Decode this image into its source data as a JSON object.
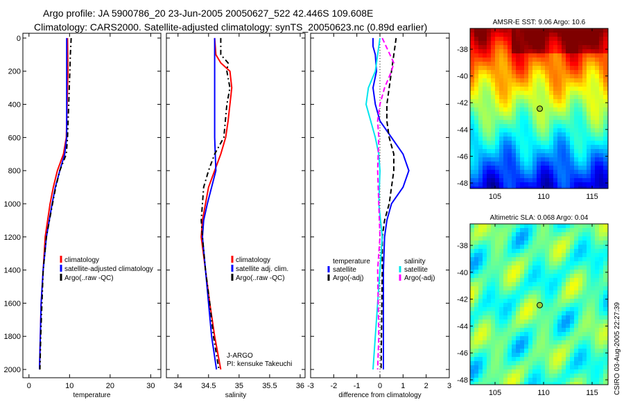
{
  "title_line1": "Argo profile: JA 5900786_20 23-Jun-2005 20050627_522 42.446S 109.608E",
  "title_line2": "Climatology: CARS2000. Satellite-adjusted climatology: synTS_20050623.nc (0.89d earlier)",
  "side_label": "CSIRO 03-Aug-2005 22:27:39",
  "chart_data": [
    {
      "type": "line",
      "xlabel": "temperature",
      "xlim": [
        -1.5,
        32.5
      ],
      "ylim": [
        2050,
        -29
      ],
      "xticks": [
        0,
        10,
        20,
        30
      ],
      "yticks": [
        0,
        200,
        400,
        600,
        800,
        1000,
        1200,
        1400,
        1600,
        1800,
        2000
      ],
      "legend": [
        "climatology",
        "satellite-adjusted climatology",
        "Argo(..raw -QC)"
      ],
      "series": [
        {
          "name": "climatology",
          "color": "#ff0000",
          "dash": "",
          "depth": [
            0,
            200,
            400,
            600,
            700,
            800,
            900,
            1000,
            1100,
            1200,
            1400,
            1600,
            1800,
            2000
          ],
          "values": [
            9.5,
            9.6,
            9.4,
            9.2,
            8.5,
            7,
            6,
            5.2,
            4.6,
            4,
            3.5,
            3,
            2.8,
            2.6
          ]
        },
        {
          "name": "satellite-adjusted climatology",
          "color": "#0000ff",
          "dash": "",
          "depth": [
            0,
            200,
            400,
            600,
            700,
            800,
            900,
            1000,
            1100,
            1200,
            1400,
            1600,
            1800,
            2000
          ],
          "values": [
            9.3,
            9.3,
            9.3,
            9.3,
            8.8,
            7.6,
            6.5,
            5.7,
            5,
            4.3,
            3.5,
            3,
            2.8,
            2.6
          ]
        },
        {
          "name": "Argo(..raw -QC)",
          "color": "#000000",
          "dash": "7,4,2,4",
          "depth": [
            0,
            100,
            400,
            600,
            700,
            800,
            900,
            1000,
            1200,
            1400,
            1800,
            2000
          ],
          "values": [
            10.4,
            10.2,
            9.8,
            9.5,
            9.2,
            7.6,
            6.6,
            5.8,
            4.3,
            3.5,
            2.9,
            2.7
          ]
        }
      ]
    },
    {
      "type": "line",
      "xlabel": "salinity",
      "xlim": [
        33.81,
        36.08
      ],
      "ylim": [
        2050,
        -29
      ],
      "xticks": [
        34,
        34.5,
        35,
        35.5,
        36
      ],
      "legend": [
        "climatology",
        "satellite adj. clim.",
        "Argo(..raw -QC)"
      ],
      "annotation": [
        "J-ARGO",
        "PI: kensuke Takeuchi"
      ],
      "series": [
        {
          "name": "climatology",
          "color": "#ff0000",
          "dash": "",
          "depth": [
            0,
            100,
            150,
            200,
            300,
            400,
            500,
            600,
            700,
            800,
            900,
            1000,
            1100,
            1200,
            1400,
            1600,
            1800,
            2000
          ],
          "values": [
            34.6,
            34.62,
            34.7,
            34.85,
            34.88,
            34.85,
            34.82,
            34.78,
            34.7,
            34.6,
            34.5,
            34.45,
            34.4,
            34.38,
            34.45,
            34.52,
            34.6,
            34.7
          ]
        },
        {
          "name": "satellite adj. clim.",
          "color": "#0000ff",
          "dash": "",
          "depth": [
            0,
            600,
            800,
            900,
            1000,
            1100,
            1200,
            1400,
            1600,
            1800,
            2000
          ],
          "values": [
            34.6,
            34.6,
            34.62,
            34.55,
            34.48,
            34.42,
            34.4,
            34.45,
            34.5,
            34.55,
            34.63
          ]
        },
        {
          "name": "Argo(..raw -QC)",
          "color": "#000000",
          "dash": "7,4,2,4",
          "depth": [
            0,
            100,
            150,
            200,
            300,
            400,
            600,
            700,
            800,
            900,
            1000,
            1100,
            1200,
            1400,
            1600,
            1800,
            2000
          ],
          "values": [
            34.7,
            34.7,
            34.82,
            34.8,
            34.85,
            34.8,
            34.75,
            34.6,
            34.5,
            34.42,
            34.4,
            34.38,
            34.4,
            34.45,
            34.52,
            34.58,
            34.67
          ]
        }
      ]
    },
    {
      "type": "line",
      "xlabel": "difference from climatology",
      "xlim": [
        -3,
        3
      ],
      "ylim": [
        2050,
        -29
      ],
      "xticks": [
        -3,
        -2,
        -1,
        0,
        1,
        2,
        3
      ],
      "legend_temperature": {
        "heading": "temperature",
        "items": [
          "satellite",
          "Argo(-adj)"
        ]
      },
      "legend_salinity": {
        "heading": "salinity",
        "items": [
          "satellite",
          "Argo(-adj)"
        ]
      },
      "series": [
        {
          "name": "temperature satellite",
          "color": "#0000ff",
          "dash": "",
          "depth": [
            0,
            50,
            100,
            200,
            300,
            400,
            500,
            600,
            700,
            800,
            900,
            1000,
            1100,
            1200,
            1400,
            1800,
            2000
          ],
          "values": [
            -0.3,
            -0.3,
            -0.2,
            -0.15,
            -0.3,
            -0.2,
            0,
            0.5,
            1.0,
            1.25,
            1.0,
            0.5,
            0.3,
            0.2,
            0.15,
            0.15,
            0.15
          ]
        },
        {
          "name": "temperature Argo(-adj)",
          "color": "#000000",
          "dash": "7,4",
          "depth": [
            0,
            100,
            200,
            300,
            400,
            500,
            600,
            700,
            800,
            900,
            1000,
            1100,
            1200,
            1400,
            2000
          ],
          "values": [
            0.7,
            0.6,
            0.5,
            0.4,
            0.3,
            0.3,
            0.4,
            0.6,
            0.6,
            0.5,
            0.4,
            0.2,
            0.1,
            0.1,
            0.05
          ]
        },
        {
          "name": "salinity satellite",
          "color": "#00e5ee",
          "dash": "",
          "depth": [
            0,
            100,
            200,
            300,
            400,
            500,
            600,
            700,
            800,
            1000,
            1200,
            1400,
            1600,
            1800,
            2000
          ],
          "values": [
            0,
            -0.1,
            -0.2,
            -0.5,
            -0.6,
            -0.4,
            -0.2,
            -0.05,
            0,
            -0.05,
            0.1,
            0,
            -0.1,
            -0.2,
            -0.3
          ]
        },
        {
          "name": "salinity Argo(-adj)",
          "color": "#ff00ff",
          "dash": "7,4",
          "depth": [
            0,
            150,
            200,
            300,
            400,
            500,
            600,
            800,
            1000,
            1200,
            1400,
            1800,
            2000
          ],
          "values": [
            0.1,
            0.6,
            0.5,
            0.2,
            0,
            -0.1,
            -0.05,
            -0.1,
            -0.05,
            0,
            -0.1,
            -0.05,
            -0.1
          ]
        }
      ]
    },
    {
      "type": "heatmap",
      "title": "AMSR-E SST: 9.06 Argo: 10.6",
      "xticks": [
        105,
        110,
        115
      ],
      "yticks": [
        -38,
        -40,
        -42,
        -44,
        -46,
        -48
      ],
      "marker": {
        "lon": 109.608,
        "lat": -42.446
      }
    },
    {
      "type": "heatmap",
      "title": "Altimetric SLA: 0.068 Argo: 0.04",
      "xticks": [
        105,
        110,
        115
      ],
      "yticks": [
        -38,
        -40,
        -42,
        -44,
        -46,
        -48
      ],
      "marker": {
        "lon": 109.608,
        "lat": -42.446
      }
    }
  ]
}
